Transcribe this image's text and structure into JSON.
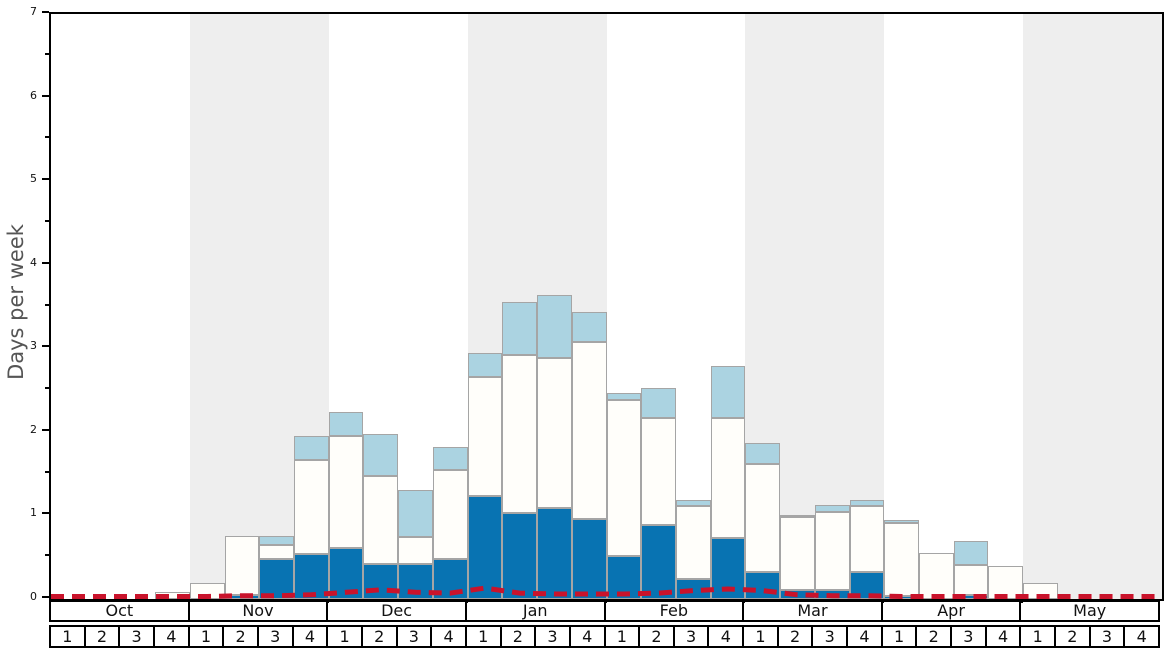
{
  "chart_data": {
    "type": "bar",
    "stacked": true,
    "title": "",
    "ylabel": "Days per week",
    "ylim": [
      0,
      7
    ],
    "ytick_labels": [
      "0",
      "1",
      "2",
      "3",
      "4",
      "5",
      "6",
      "7"
    ],
    "minor_ticks_every": 0.5,
    "grid": false,
    "legend": "none",
    "months": [
      "Oct",
      "Nov",
      "Dec",
      "Jan",
      "Feb",
      "Mar",
      "Apr",
      "May"
    ],
    "weeks_per_month": 4,
    "week_labels": [
      "1",
      "2",
      "3",
      "4"
    ],
    "series": [
      {
        "name": "dark-blue-segment",
        "color": "#0873b2",
        "values": [
          0,
          0,
          0,
          0,
          0,
          0.05,
          0.48,
          0.54,
          0.61,
          0.42,
          0.42,
          0.48,
          1.23,
          1.03,
          1.09,
          0.96,
          0.52,
          0.88,
          0.24,
          0.73,
          0.32,
          0.11,
          0.11,
          0.32,
          0.04,
          0,
          0.05,
          0,
          0,
          0,
          0,
          0
        ]
      },
      {
        "name": "white-segment",
        "color": "#fffefa",
        "values": [
          0,
          0,
          0,
          0.08,
          0.19,
          0.71,
          0.17,
          1.12,
          1.34,
          1.05,
          0.32,
          1.06,
          1.43,
          1.89,
          1.79,
          2.11,
          1.86,
          1.29,
          0.87,
          1.44,
          1.29,
          0.87,
          0.93,
          0.79,
          0.87,
          0.55,
          0.36,
          0.4,
          0.19,
          0,
          0,
          0
        ]
      },
      {
        "name": "light-blue-segment",
        "color": "#abd3e1",
        "values": [
          0,
          0,
          0,
          0,
          0,
          0,
          0.11,
          0.29,
          0.29,
          0.5,
          0.57,
          0.28,
          0.28,
          0.64,
          0.76,
          0.36,
          0.08,
          0.35,
          0.08,
          0.62,
          0.26,
          0.03,
          0.08,
          0.07,
          0.04,
          0,
          0.28,
          0,
          0,
          0,
          0,
          0
        ]
      }
    ],
    "red_dashed_line": {
      "name": "red-dashed-line",
      "color": "#c9132b",
      "values": [
        0.03,
        0.03,
        0.03,
        0.03,
        0.03,
        0.04,
        0.04,
        0.05,
        0.08,
        0.11,
        0.08,
        0.07,
        0.13,
        0.07,
        0.06,
        0.06,
        0.06,
        0.07,
        0.1,
        0.12,
        0.1,
        0.05,
        0.04,
        0.04,
        0.03,
        0.03,
        0.03,
        0.03,
        0.03,
        0.03,
        0.03,
        0.03
      ]
    },
    "colors": {
      "band_shade": "#eeeeee",
      "band_plain": "#ffffff",
      "bar_border": "#a5a5a5",
      "axis": "#000000",
      "ylabel_text": "#555555"
    }
  }
}
